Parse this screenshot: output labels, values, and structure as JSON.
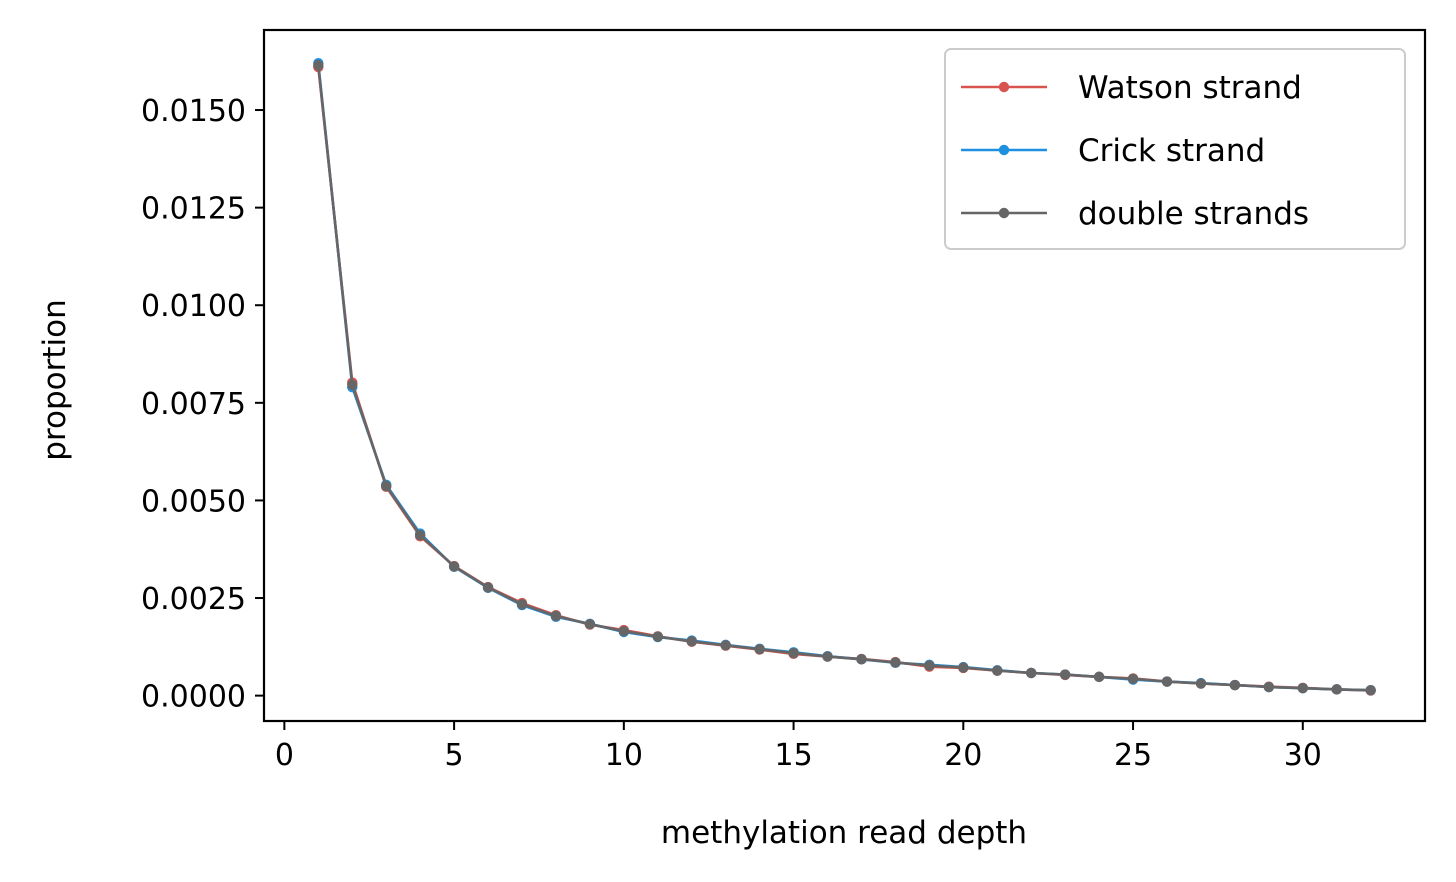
{
  "colors": {
    "watson": "#d9534f",
    "crick": "#1f8fe0",
    "double": "#666666",
    "axes": "#000000",
    "background": "#ffffff"
  },
  "chart_data": {
    "type": "line",
    "title": "",
    "xlabel": "methylation read depth",
    "ylabel": "proportion",
    "xlim": [
      -0.6,
      33.6
    ],
    "ylim": [
      -0.00065,
      0.01705
    ],
    "xticks": [
      0,
      5,
      10,
      15,
      20,
      25,
      30
    ],
    "xtick_labels": [
      "0",
      "5",
      "10",
      "15",
      "20",
      "25",
      "30"
    ],
    "yticks": [
      0.0,
      0.0025,
      0.005,
      0.0075,
      0.01,
      0.0125,
      0.015
    ],
    "ytick_labels": [
      "0.0000",
      "0.0025",
      "0.0050",
      "0.0075",
      "0.0100",
      "0.0125",
      "0.0150"
    ],
    "grid": false,
    "legend_position": "top-right",
    "x": [
      1,
      2,
      3,
      4,
      5,
      6,
      7,
      8,
      9,
      10,
      11,
      12,
      13,
      14,
      15,
      16,
      17,
      18,
      19,
      20,
      21,
      22,
      23,
      24,
      25,
      26,
      27,
      28,
      29,
      30,
      31,
      32
    ],
    "series": [
      {
        "name": "Watson strand",
        "color": "#d9534f",
        "values": [
          0.0161,
          0.00802,
          0.00535,
          0.00408,
          0.00332,
          0.00278,
          0.00237,
          0.00206,
          0.00182,
          0.00168,
          0.00152,
          0.00138,
          0.00128,
          0.00118,
          0.00107,
          0.001,
          0.00094,
          0.00086,
          0.00074,
          0.00071,
          0.00064,
          0.00058,
          0.00053,
          0.00048,
          0.00044,
          0.00036,
          0.00031,
          0.00027,
          0.00023,
          0.0002,
          0.00016,
          0.00013
        ]
      },
      {
        "name": "Crick strand",
        "color": "#1f8fe0",
        "values": [
          0.0162,
          0.0079,
          0.0054,
          0.00415,
          0.0033,
          0.00276,
          0.00232,
          0.00202,
          0.00184,
          0.00163,
          0.0015,
          0.00141,
          0.0013,
          0.0012,
          0.00111,
          0.00101,
          0.00093,
          0.00084,
          0.00079,
          0.00073,
          0.00065,
          0.00058,
          0.00054,
          0.00048,
          0.00041,
          0.00036,
          0.00032,
          0.00027,
          0.00022,
          0.00019,
          0.00016,
          0.00014
        ]
      },
      {
        "name": "double strands",
        "color": "#666666",
        "values": [
          0.01615,
          0.00796,
          0.00537,
          0.00411,
          0.00331,
          0.00277,
          0.00234,
          0.00204,
          0.00183,
          0.00165,
          0.00151,
          0.00139,
          0.00129,
          0.00119,
          0.00109,
          0.001,
          0.00093,
          0.00085,
          0.00077,
          0.00072,
          0.00064,
          0.00058,
          0.00054,
          0.00048,
          0.00043,
          0.00036,
          0.00031,
          0.00027,
          0.00022,
          0.00019,
          0.00016,
          0.00014
        ]
      }
    ]
  }
}
